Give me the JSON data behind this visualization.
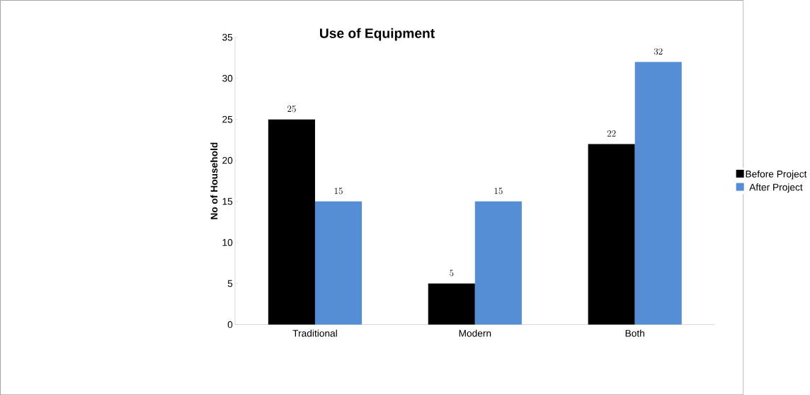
{
  "chart_data": {
    "type": "bar",
    "title": "Use of Equipment",
    "ylabel": "No of Household",
    "categories": [
      "Traditional",
      "Modern",
      "Both"
    ],
    "series": [
      {
        "name": "Before Project",
        "color": "#000000",
        "values": [
          25,
          5,
          22
        ]
      },
      {
        "name": "After Project",
        "color": "#558ed5",
        "values": [
          15,
          15,
          32
        ]
      }
    ],
    "ylim": [
      0,
      35
    ],
    "yticks": [
      0,
      5,
      10,
      15,
      20,
      25,
      30,
      35
    ],
    "data_labels": true,
    "legend": "right"
  }
}
